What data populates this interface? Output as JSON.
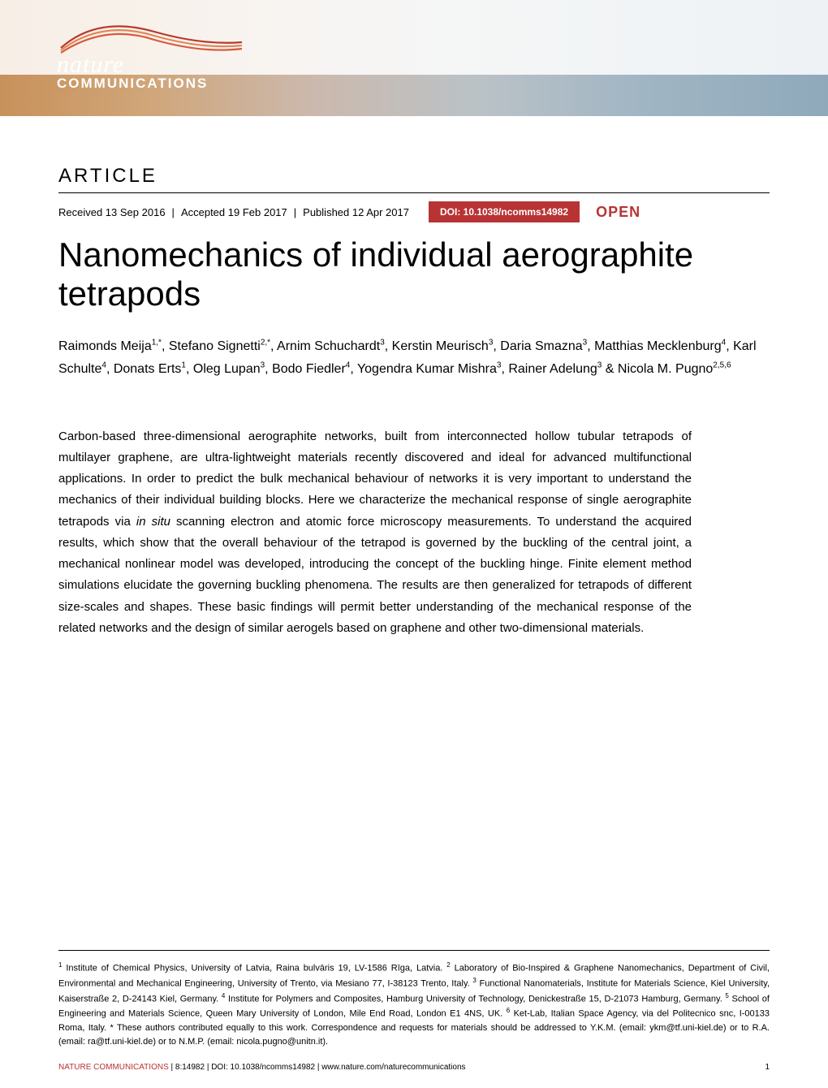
{
  "journal": {
    "name_line1": "nature",
    "name_line2": "COMMUNICATIONS",
    "swoosh_colors": [
      "#b73a2a",
      "#e2865a",
      "#d85a3c"
    ],
    "gradient_stops": [
      "#c8915a",
      "#d0a67a",
      "#cbb9ad",
      "#bac2c7",
      "#a0b5c3",
      "#8fa9bb"
    ]
  },
  "article_label": "ARTICLE",
  "dates": {
    "received": "Received 13 Sep 2016",
    "accepted": "Accepted 19 Feb 2017",
    "published": "Published 12 Apr 2017"
  },
  "doi": "DOI: 10.1038/ncomms14982",
  "open_label": "OPEN",
  "title": "Nanomechanics of individual aerographite tetrapods",
  "authors_html": "Raimonds Meija<sup>1,*</sup>, Stefano Signetti<sup>2,*</sup>, Arnim Schuchardt<sup>3</sup>, Kerstin Meurisch<sup>3</sup>, Daria Smazna<sup>3</sup>, Matthias Mecklenburg<sup>4</sup>, Karl Schulte<sup>4</sup>, Donats Erts<sup>1</sup>, Oleg Lupan<sup>3</sup>, Bodo Fiedler<sup>4</sup>, Yogendra Kumar Mishra<sup>3</sup>, Rainer Adelung<sup>3</sup> & Nicola M. Pugno<sup>2,5,6</sup>",
  "abstract": "Carbon-based three-dimensional aerographite networks, built from interconnected hollow tubular tetrapods of multilayer graphene, are ultra-lightweight materials recently discovered and ideal for advanced multifunctional applications. In order to predict the bulk mechanical behaviour of networks it is very important to understand the mechanics of their individual building blocks. Here we characterize the mechanical response of single aerographite tetrapods via <span class=\"italic\">in situ</span> scanning electron and atomic force microscopy measurements. To understand the acquired results, which show that the overall behaviour of the tetrapod is governed by the buckling of the central joint, a mechanical nonlinear model was developed, introducing the concept of the buckling hinge. Finite element method simulations elucidate the governing buckling phenomena. The results are then generalized for tetrapods of different size-scales and shapes. These basic findings will permit better understanding of the mechanical response of the related networks and the design of similar aerogels based on graphene and other two-dimensional materials.",
  "affiliations_html": "<sup>1</sup> Institute of Chemical Physics, University of Latvia, Raina bulvāris 19, LV-1586 Rīga, Latvia. <sup>2</sup> Laboratory of Bio-Inspired & Graphene Nanomechanics, Department of Civil, Environmental and Mechanical Engineering, University of Trento, via Mesiano 77, I-38123 Trento, Italy. <sup>3</sup> Functional Nanomaterials, Institute for Materials Science, Kiel University, Kaiserstraße 2, D-24143 Kiel, Germany. <sup>4</sup> Institute for Polymers and Composites, Hamburg University of Technology, Denickestraße 15, D-21073 Hamburg, Germany. <sup>5</sup> School of Engineering and Materials Science, Queen Mary University of London, Mile End Road, London E1 4NS, UK. <sup>6</sup> Ket-Lab, Italian Space Agency, via del Politecnico snc, I-00133 Roma, Italy. * These authors contributed equally to this work. Correspondence and requests for materials should be addressed to Y.K.M. (email: ykm@tf.uni-kiel.de) or to R.A. (email: ra@tf.uni-kiel.de) or to N.M.P. (email: nicola.pugno@unitn.it).",
  "footer": {
    "journal": "NATURE COMMUNICATIONS",
    "citation": "| 8:14982 | DOI: 10.1038/ncomms14982 | www.nature.com/naturecommunications",
    "page": "1"
  },
  "colors": {
    "doi_bg": "#b83334",
    "open_text": "#b83334",
    "footer_red": "#b83334"
  }
}
